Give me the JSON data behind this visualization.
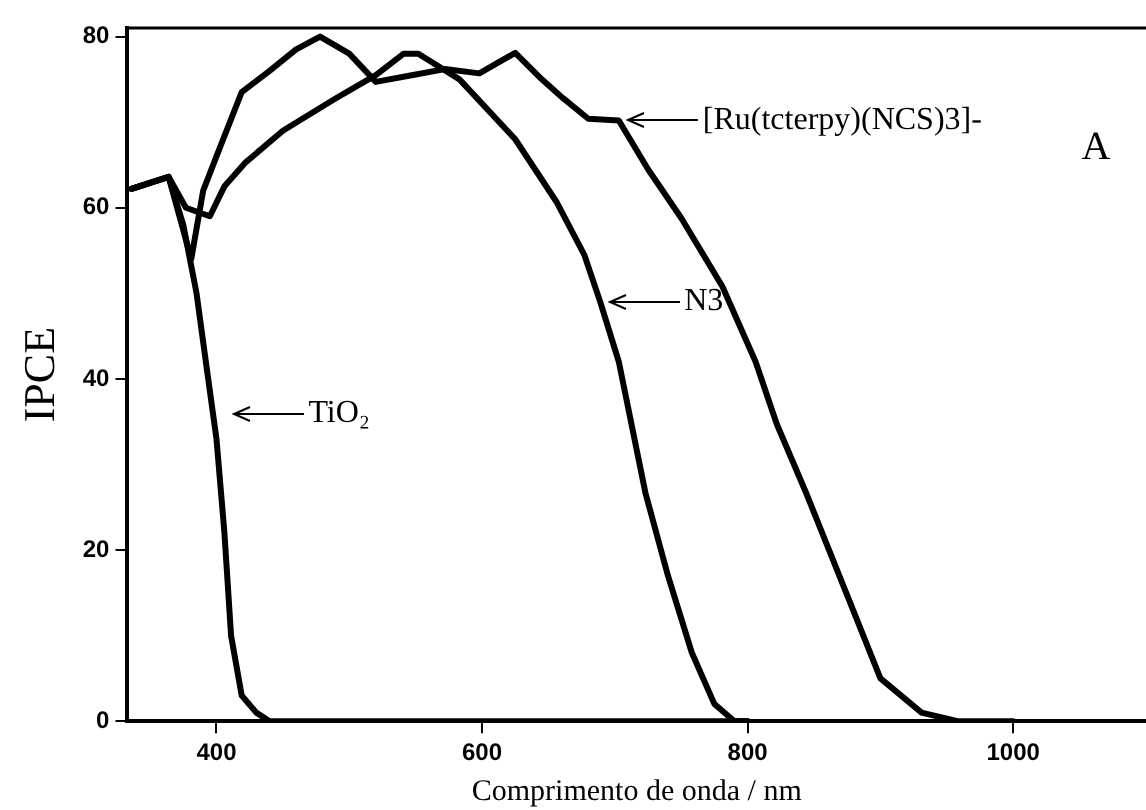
{
  "chart_data": {
    "type": "line",
    "xlabel": "Comprimento de onda / nm",
    "ylabel": "IPCE",
    "xlim": [
      333,
      1100
    ],
    "ylim": [
      0,
      81
    ],
    "xticks": [
      400,
      600,
      800,
      1000
    ],
    "yticks": [
      0,
      20,
      40,
      60,
      80
    ],
    "grid": false,
    "legend": false,
    "marker": "none",
    "line_style": "solid",
    "series": [
      {
        "color": "#000000",
        "x": [
          336,
          364,
          381,
          390,
          400,
          419,
          440,
          460,
          478,
          500,
          520,
          548,
          572,
          598,
          625,
          645,
          661,
          680,
          703,
          725,
          750,
          781,
          806,
          822,
          844,
          875,
          900,
          931,
          958,
          1000
        ],
        "values": [
          62.2,
          63.6,
          54,
          62,
          66,
          73.5,
          76,
          78.5,
          80,
          78,
          74.7,
          75.5,
          76.2,
          75.7,
          78.1,
          75,
          72.8,
          70.4,
          70.2,
          64.5,
          58.8,
          50.8,
          42,
          34.7,
          26.7,
          14.7,
          5,
          1,
          0,
          0
        ]
      },
      {
        "color": "#000000",
        "x": [
          336,
          364,
          377,
          395,
          406,
          422,
          450,
          489,
          520,
          541,
          552,
          583,
          625,
          656,
          677,
          689,
          703,
          723,
          740,
          758,
          775,
          790,
          800
        ],
        "values": [
          62.2,
          63.6,
          60,
          59,
          62.5,
          65.3,
          69,
          72.7,
          75.5,
          78,
          78,
          75,
          68,
          60.7,
          54.5,
          49,
          42,
          26.7,
          17,
          8,
          2,
          0,
          0
        ]
      },
      {
        "color": "#000000",
        "x": [
          336,
          364,
          375,
          385,
          392,
          400,
          406,
          411,
          419,
          430,
          440,
          800
        ],
        "values": [
          62.2,
          63.6,
          58,
          50,
          42,
          33,
          22,
          10,
          3,
          1,
          0,
          0
        ]
      }
    ],
    "annotations": [
      {
        "text": "[Ru(tcterpy)(NCS)3]-",
        "x": 703,
        "y": 70.2
      },
      {
        "text": "N3",
        "x": 689,
        "y": 49
      },
      {
        "text": "TiO₂",
        "x": 406,
        "y": 36
      },
      "A"
    ]
  }
}
